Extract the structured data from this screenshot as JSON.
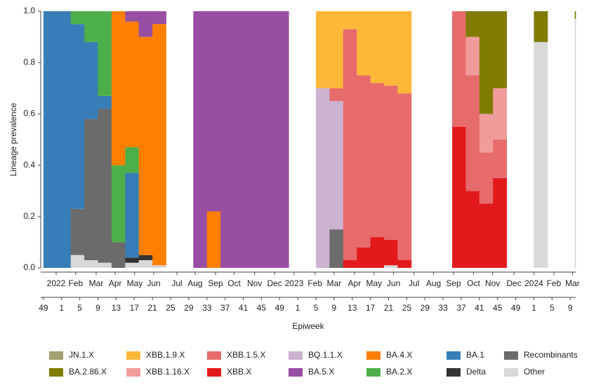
{
  "chart_data": {
    "type": "stacked-column",
    "y_label": "Lineage prevalence",
    "x_label": "Epiweek",
    "xlim": [
      -0.6,
      117.2
    ],
    "ylim": [
      0,
      1
    ],
    "yticks": [
      {
        "value": 0,
        "label": "0.0"
      },
      0.2,
      0.4,
      0.6,
      0.8,
      {
        "value": 1,
        "label": "1.0"
      }
    ],
    "xticks": [
      {
        "value": 0,
        "label": "49"
      },
      {
        "value": 4,
        "label": "1"
      },
      {
        "value": 8,
        "label": "5"
      },
      {
        "value": 12,
        "label": "9"
      },
      {
        "value": 16,
        "label": "13"
      },
      {
        "value": 20,
        "label": "17"
      },
      {
        "value": 24,
        "label": "21"
      },
      {
        "value": 28,
        "label": "25"
      },
      {
        "value": 32,
        "label": "29"
      },
      {
        "value": 36,
        "label": "33"
      },
      {
        "value": 40,
        "label": "37"
      },
      {
        "value": 44,
        "label": "41"
      },
      {
        "value": 48,
        "label": "45"
      },
      {
        "value": 52,
        "label": "49"
      },
      {
        "value": 56,
        "label": "1"
      },
      {
        "value": 60,
        "label": "5"
      },
      {
        "value": 64,
        "label": "9"
      },
      {
        "value": 68,
        "label": "13"
      },
      {
        "value": 72,
        "label": "17"
      },
      {
        "value": 76,
        "label": "21"
      },
      {
        "value": 80,
        "label": "25"
      },
      {
        "value": 84,
        "label": "29"
      },
      {
        "value": 88,
        "label": "33"
      },
      {
        "value": 92,
        "label": "37"
      },
      {
        "value": 96,
        "label": "41"
      },
      {
        "value": 100,
        "label": "45"
      },
      {
        "value": 104,
        "label": "49"
      },
      {
        "value": 108,
        "label": "1"
      },
      {
        "value": 112,
        "label": "5"
      },
      {
        "value": 116,
        "label": "9"
      }
    ],
    "month_ticks": [
      {
        "value": 2.8,
        "label": "2022"
      },
      {
        "value": 7.1,
        "label": "Feb"
      },
      {
        "value": 11.6,
        "label": "Mar"
      },
      {
        "value": 15.8,
        "label": "Apr"
      },
      {
        "value": 20.1,
        "label": "May"
      },
      {
        "value": 24.3,
        "label": "Jun"
      },
      {
        "value": 29.4,
        "label": "Jul"
      },
      {
        "value": 33.4,
        "label": "Aug"
      },
      {
        "value": 37.9,
        "label": "Sep"
      },
      {
        "value": 42.0,
        "label": "Oct"
      },
      {
        "value": 46.5,
        "label": "Nov"
      },
      {
        "value": 50.9,
        "label": "Dec"
      },
      {
        "value": 55.2,
        "label": "2023"
      },
      {
        "value": 59.8,
        "label": "Feb"
      },
      {
        "value": 64.0,
        "label": "Mar"
      },
      {
        "value": 68.5,
        "label": "Apr"
      },
      {
        "value": 72.8,
        "label": "May"
      },
      {
        "value": 77.1,
        "label": "Jun"
      },
      {
        "value": 81.6,
        "label": "Jul"
      },
      {
        "value": 85.9,
        "label": "Aug"
      },
      {
        "value": 90.3,
        "label": "Sep"
      },
      {
        "value": 94.7,
        "label": "Oct"
      },
      {
        "value": 98.9,
        "label": "Nov"
      },
      {
        "value": 103.6,
        "label": "Dec"
      },
      {
        "value": 108.0,
        "label": "2024"
      },
      {
        "value": 112.4,
        "label": "Feb"
      },
      {
        "value": 116.5,
        "label": "Mar"
      }
    ],
    "x": [
      0,
      3,
      6,
      9,
      12,
      15,
      18,
      21,
      24,
      27,
      30,
      33,
      36,
      39,
      42,
      45,
      48,
      51,
      54,
      57,
      60,
      63,
      66,
      69,
      72,
      75,
      78,
      81,
      84,
      87,
      90,
      93,
      96,
      99,
      102,
      105,
      108,
      111,
      114,
      117
    ],
    "series": [
      {
        "name": "JN.1.X",
        "color": "#a39e70",
        "values": [
          0,
          0,
          0,
          0,
          0,
          0,
          0,
          0,
          0,
          null,
          null,
          0,
          0,
          0,
          0,
          0,
          0,
          0,
          null,
          null,
          0,
          0,
          0,
          0,
          0,
          0,
          0,
          null,
          null,
          null,
          0,
          0,
          0,
          0,
          null,
          null,
          0,
          null,
          null,
          0
        ]
      },
      {
        "name": "BA.2.86.X",
        "color": "#7f7c00",
        "values": [
          0,
          0,
          0,
          0,
          0,
          0,
          0,
          0,
          0,
          null,
          null,
          0,
          0,
          0,
          0,
          0,
          0,
          0,
          null,
          null,
          0,
          0,
          0,
          0,
          0,
          0,
          0,
          null,
          null,
          null,
          0,
          0.1,
          0.4,
          0.3,
          null,
          null,
          0.12,
          null,
          null,
          0.03
        ]
      },
      {
        "name": "XBB.1.9.X",
        "color": "#fdb83a",
        "values": [
          0,
          0,
          0,
          0,
          0,
          0,
          0,
          0,
          0,
          null,
          null,
          0,
          0,
          0,
          0,
          0,
          0,
          0,
          null,
          null,
          0.3,
          0.3,
          0.07,
          0.25,
          0.28,
          0.29,
          0.32,
          null,
          null,
          null,
          0,
          0,
          0,
          0,
          null,
          null,
          0,
          null,
          null,
          0
        ]
      },
      {
        "name": "XBB.1.16.X",
        "color": "#f19c9b",
        "values": [
          0,
          0,
          0,
          0,
          0,
          0,
          0,
          0,
          0,
          null,
          null,
          0,
          0,
          0,
          0,
          0,
          0,
          0,
          null,
          null,
          0,
          0,
          0,
          0,
          0,
          0,
          0,
          null,
          null,
          null,
          0,
          0.15,
          0.15,
          0.2,
          null,
          null,
          0,
          null,
          null,
          0
        ]
      },
      {
        "name": "XBB.1.5.X",
        "color": "#e86b6b",
        "values": [
          0,
          0,
          0,
          0,
          0,
          0,
          0,
          0,
          0,
          null,
          null,
          0,
          0,
          0,
          0,
          0,
          0,
          0,
          null,
          null,
          0,
          0.05,
          0.9,
          0.67,
          0.6,
          0.6,
          0.65,
          null,
          null,
          null,
          0.45,
          0.45,
          0.2,
          0.15,
          null,
          null,
          0,
          null,
          null,
          0
        ]
      },
      {
        "name": "XBB.X",
        "color": "#e31a1c",
        "values": [
          0,
          0,
          0,
          0,
          0,
          0,
          0,
          0,
          0,
          null,
          null,
          0,
          0,
          0,
          0,
          0,
          0,
          0,
          null,
          null,
          0,
          0,
          0.03,
          0.08,
          0.12,
          0.1,
          0.03,
          null,
          null,
          null,
          0.55,
          0.3,
          0.25,
          0.35,
          null,
          null,
          0,
          null,
          null,
          0
        ]
      },
      {
        "name": "BQ.1.1.X",
        "color": "#cdb2d2",
        "values": [
          0,
          0,
          0,
          0,
          0,
          0,
          0,
          0,
          0,
          null,
          null,
          0,
          0,
          0,
          0,
          0,
          0,
          0,
          null,
          null,
          0.7,
          0.5,
          0,
          0,
          0,
          0,
          0,
          null,
          null,
          null,
          0,
          0,
          0,
          0,
          null,
          null,
          0,
          null,
          null,
          0
        ]
      },
      {
        "name": "BA.5.X",
        "color": "#984ea3",
        "values": [
          0,
          0,
          0,
          0,
          0,
          0,
          0.04,
          0.1,
          0.05,
          null,
          null,
          1,
          0.78,
          1,
          1,
          1,
          1,
          1,
          null,
          null,
          0,
          0,
          0,
          0,
          0,
          0,
          0,
          null,
          null,
          null,
          0,
          0,
          0,
          0,
          null,
          null,
          0,
          null,
          null,
          0
        ]
      },
      {
        "name": "BA.4.X",
        "color": "#ff7f00",
        "values": [
          0,
          0,
          0,
          0,
          0,
          0.6,
          0.49,
          0.85,
          0.94,
          null,
          null,
          0,
          0.22,
          0,
          0,
          0,
          0,
          0,
          null,
          null,
          0,
          0,
          0,
          0,
          0,
          0,
          0,
          null,
          null,
          null,
          0,
          0,
          0,
          0,
          null,
          null,
          0,
          null,
          null,
          0
        ]
      },
      {
        "name": "BA.2.X",
        "color": "#4daf4a",
        "values": [
          0,
          0,
          0.05,
          0.12,
          0.33,
          0.3,
          0.1,
          0,
          0,
          null,
          null,
          0,
          0,
          0,
          0,
          0,
          0,
          0,
          null,
          null,
          0,
          0,
          0,
          0,
          0,
          0,
          0,
          null,
          null,
          null,
          0,
          0,
          0,
          0,
          null,
          null,
          0,
          null,
          null,
          0
        ]
      },
      {
        "name": "BA.1",
        "color": "#377eb8",
        "values": [
          1,
          1,
          0.72,
          0.3,
          0.05,
          0,
          0.33,
          0,
          0,
          null,
          null,
          0,
          0,
          0,
          0,
          0,
          0,
          0,
          null,
          null,
          0,
          0,
          0,
          0,
          0,
          0,
          0,
          null,
          null,
          null,
          0,
          0,
          0,
          0,
          null,
          null,
          0,
          null,
          null,
          0
        ]
      },
      {
        "name": "Delta",
        "color": "#333333",
        "values": [
          0,
          0,
          0,
          0,
          0,
          0,
          0.02,
          0.02,
          0,
          null,
          null,
          0,
          0,
          0,
          0,
          0,
          0,
          0,
          null,
          null,
          0,
          0,
          0,
          0,
          0,
          0,
          0,
          null,
          null,
          null,
          0,
          0,
          0,
          0,
          null,
          null,
          0,
          null,
          null,
          0
        ]
      },
      {
        "name": "Recombinants",
        "color": "#6b6b6b",
        "values": [
          0,
          0,
          0.18,
          0.55,
          0.6,
          0.1,
          0,
          0,
          0,
          null,
          null,
          0,
          0,
          0,
          0,
          0,
          0,
          0,
          null,
          null,
          0,
          0.15,
          0,
          0,
          0,
          0,
          0,
          null,
          null,
          null,
          0,
          0,
          0,
          0,
          null,
          null,
          0,
          null,
          null,
          0
        ]
      },
      {
        "name": "Other",
        "color": "#d9d9d9",
        "values": [
          0,
          0,
          0.05,
          0.03,
          0.02,
          0,
          0.02,
          0.03,
          0.01,
          null,
          null,
          0,
          0,
          0,
          0,
          0,
          0,
          0,
          null,
          null,
          0,
          0,
          0,
          0,
          0,
          0.01,
          0,
          null,
          null,
          null,
          0,
          0,
          0,
          0,
          null,
          null,
          0.88,
          null,
          null,
          0.97
        ]
      }
    ]
  }
}
